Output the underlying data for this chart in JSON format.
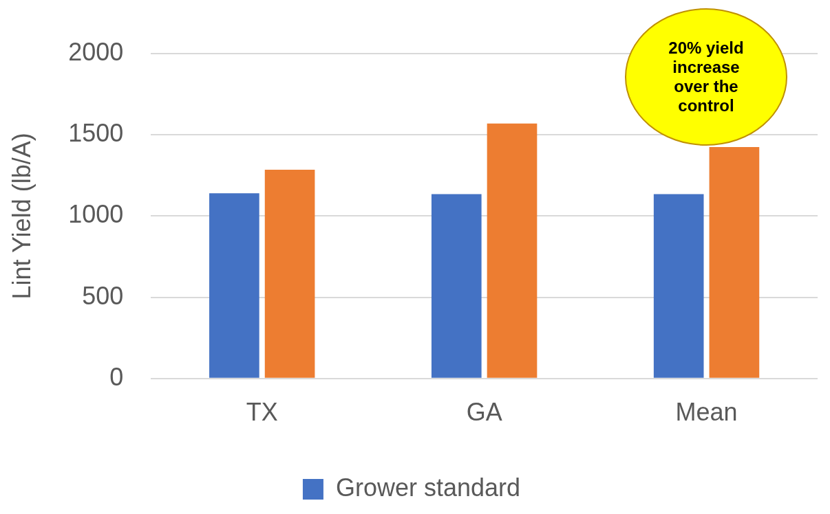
{
  "chart_data": {
    "type": "bar",
    "ylabel": "Lint Yield (lb/A)",
    "categories": [
      "TX",
      "GA",
      "Mean"
    ],
    "series": [
      {
        "name": "Grower standard",
        "color": "#4472c4",
        "values": [
          1140,
          1135,
          1135
        ]
      },
      {
        "color": "#ed7d31",
        "values": [
          1285,
          1570,
          1425
        ]
      }
    ],
    "ylim": [
      0,
      2000
    ],
    "yticks": [
      0,
      500,
      1000,
      1500,
      2000
    ],
    "grid": "y",
    "legend": "bottom",
    "annotations": [
      "20% yield increase over the control"
    ]
  }
}
